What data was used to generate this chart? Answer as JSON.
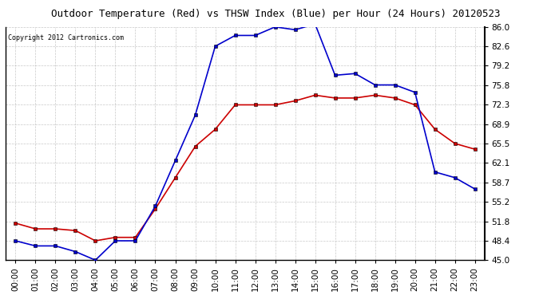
{
  "title": "Outdoor Temperature (Red) vs THSW Index (Blue) per Hour (24 Hours) 20120523",
  "copyright_text": "Copyright 2012 Cartronics.com",
  "x_labels": [
    "00:00",
    "01:00",
    "02:00",
    "03:00",
    "04:00",
    "05:00",
    "06:00",
    "07:00",
    "08:00",
    "09:00",
    "10:00",
    "11:00",
    "12:00",
    "13:00",
    "14:00",
    "15:00",
    "16:00",
    "17:00",
    "18:00",
    "19:00",
    "20:00",
    "21:00",
    "22:00",
    "23:00"
  ],
  "red_data": [
    51.5,
    50.5,
    50.5,
    50.2,
    48.4,
    49.0,
    49.0,
    54.0,
    59.5,
    65.0,
    68.0,
    72.3,
    72.3,
    72.3,
    73.0,
    74.0,
    73.5,
    73.5,
    74.0,
    73.5,
    72.3,
    68.0,
    65.5,
    64.5
  ],
  "blue_data": [
    48.4,
    47.5,
    47.5,
    46.5,
    45.0,
    48.4,
    48.4,
    54.5,
    62.5,
    70.5,
    82.6,
    84.5,
    84.5,
    86.0,
    85.5,
    86.5,
    77.5,
    77.8,
    75.8,
    75.8,
    74.5,
    60.5,
    59.5,
    57.5
  ],
  "ylim": [
    45.0,
    86.0
  ],
  "yticks": [
    45.0,
    48.4,
    51.8,
    55.2,
    58.7,
    62.1,
    65.5,
    68.9,
    72.3,
    75.8,
    79.2,
    82.6,
    86.0
  ],
  "red_color": "#cc0000",
  "blue_color": "#0000cc",
  "marker_color": "#000000",
  "bg_color": "#ffffff",
  "plot_bg_color": "#ffffff",
  "grid_color": "#bbbbbb",
  "title_fontsize": 9,
  "copyright_fontsize": 6,
  "tick_fontsize": 7.5,
  "marker_size": 3
}
